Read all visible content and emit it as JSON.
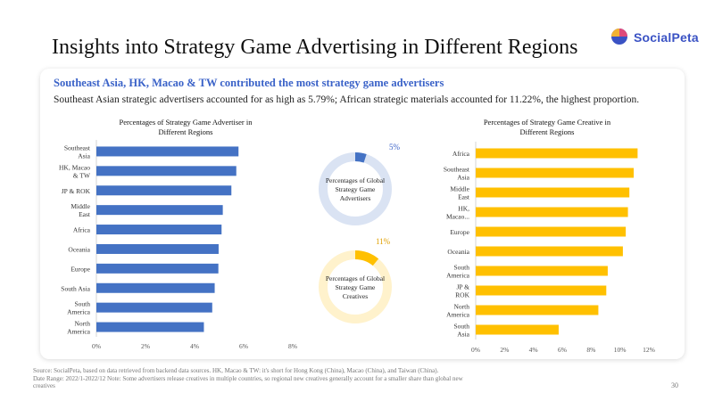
{
  "page": {
    "title": "Insights into Strategy Game Advertising in Different Regions",
    "headline": "Southeast Asia, HK, Macao & TW contributed the most strategy game advertisers",
    "subline": "Southeast Asian strategic advertisers accounted for as high as 5.79%; African strategic materials accounted for 11.22%, the highest proportion.",
    "footnote_line1": "Source: SocialPeta, based on data retrieved from backend data sources. HK, Macao & TW: it's short for Hong Kong (China), Macao (China), and Taiwan (China).",
    "footnote_line2": "Date Range:  2022/1-2022/12  Note: Some advertisers release creatives in multiple countries, so regional new creatives generally account for a smaller share than global new",
    "footnote_line3": "creatives",
    "page_number": "30"
  },
  "logo": {
    "text": "SocialPeta",
    "colors": [
      "#e04a7a",
      "#3a52c4",
      "#f2b233"
    ]
  },
  "chart_data": [
    {
      "type": "bar",
      "orientation": "horizontal",
      "title": [
        "Percentages of Strategy Game Advertiser in",
        "Different Regions"
      ],
      "categories": [
        [
          "Southeast",
          "Asia"
        ],
        [
          "HK, Macao",
          "& TW"
        ],
        [
          "JP & ROK"
        ],
        [
          "Middle",
          "East"
        ],
        [
          "Africa"
        ],
        [
          "Oceania"
        ],
        [
          "Europe"
        ],
        [
          "South Asia"
        ],
        [
          "South",
          "America"
        ],
        [
          "North",
          "America"
        ]
      ],
      "values": [
        5.79,
        5.7,
        5.5,
        5.15,
        5.1,
        4.98,
        4.97,
        4.82,
        4.72,
        4.38
      ],
      "xlim": [
        0,
        8
      ],
      "ticks": [
        "0%",
        "2%",
        "4%",
        "6%",
        "8%"
      ],
      "color": "#4472c4"
    },
    {
      "type": "pie",
      "variant": "donut",
      "label": [
        "Percentages of Global",
        "Strategy Game",
        "Advertisers"
      ],
      "value": 5,
      "value_label": "5%",
      "color": "#4472c4",
      "track_color": "#dae3f3"
    },
    {
      "type": "pie",
      "variant": "donut",
      "label": [
        "Percentages of Global",
        "Strategy Game",
        "Creatives"
      ],
      "value": 11,
      "value_label": "11%",
      "color": "#ffc000",
      "track_color": "#fff2cc"
    },
    {
      "type": "bar",
      "orientation": "horizontal",
      "title": [
        "Percentages of Strategy Game Creative in",
        "Different Regions"
      ],
      "categories": [
        [
          "Africa"
        ],
        [
          "Southeast",
          "Asia"
        ],
        [
          "Middle",
          "East"
        ],
        [
          "HK,",
          "Macao..."
        ],
        [
          "Europe"
        ],
        [
          "Oceania"
        ],
        [
          "South",
          "America"
        ],
        [
          "JP &",
          "ROK"
        ],
        [
          "North",
          "America"
        ],
        [
          "South",
          "Asia"
        ]
      ],
      "values": [
        11.22,
        10.95,
        10.65,
        10.55,
        10.4,
        10.2,
        9.15,
        9.05,
        8.5,
        5.75
      ],
      "xlim": [
        0,
        12
      ],
      "ticks": [
        "0%",
        "2%",
        "4%",
        "6%",
        "8%",
        "10%",
        "12%"
      ],
      "color": "#ffc000"
    }
  ]
}
